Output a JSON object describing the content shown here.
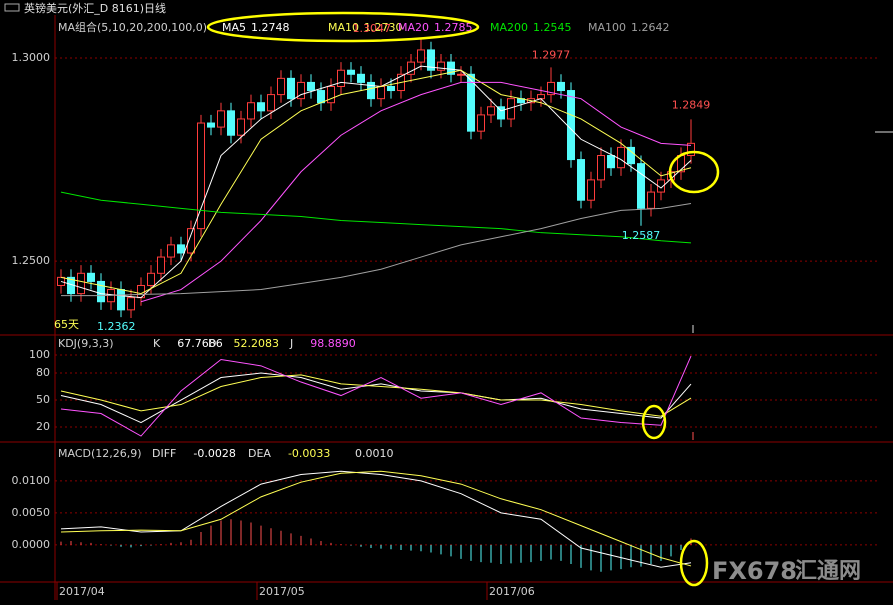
{
  "header": {
    "title": "英镑美元(外汇_D 8161)日线"
  },
  "watermark": {
    "brand": "FX678",
    "name": "汇通网"
  },
  "chart_data": [
    {
      "type": "candlestick",
      "title": "MA组合(5,10,20,200,100,0)",
      "period_label": "65天",
      "up_color": "#ff3c3c",
      "down_color": "#54fcfc",
      "grid": true,
      "ylim": [
        1.2323,
        1.3106
      ],
      "yticks": [
        {
          "value": 1.25,
          "label": "1.2500"
        },
        {
          "value": 1.3,
          "label": "1.3000"
        }
      ],
      "ohlc": [
        [
          1.244,
          1.248,
          1.242,
          1.246
        ],
        [
          1.246,
          1.248,
          1.24,
          1.242
        ],
        [
          1.242,
          1.249,
          1.24,
          1.247
        ],
        [
          1.247,
          1.249,
          1.243,
          1.245
        ],
        [
          1.245,
          1.247,
          1.238,
          1.24
        ],
        [
          1.24,
          1.245,
          1.238,
          1.243
        ],
        [
          1.243,
          1.245,
          1.2362,
          1.238
        ],
        [
          1.238,
          1.243,
          1.236,
          1.241
        ],
        [
          1.241,
          1.246,
          1.239,
          1.244
        ],
        [
          1.244,
          1.249,
          1.242,
          1.247
        ],
        [
          1.247,
          1.253,
          1.245,
          1.251
        ],
        [
          1.251,
          1.256,
          1.249,
          1.254
        ],
        [
          1.254,
          1.256,
          1.25,
          1.252
        ],
        [
          1.252,
          1.26,
          1.25,
          1.258
        ],
        [
          1.258,
          1.286,
          1.256,
          1.284
        ],
        [
          1.284,
          1.286,
          1.281,
          1.283
        ],
        [
          1.283,
          1.289,
          1.281,
          1.287
        ],
        [
          1.287,
          1.289,
          1.279,
          1.281
        ],
        [
          1.281,
          1.287,
          1.279,
          1.285
        ],
        [
          1.285,
          1.291,
          1.283,
          1.289
        ],
        [
          1.289,
          1.291,
          1.285,
          1.287
        ],
        [
          1.287,
          1.293,
          1.285,
          1.291
        ],
        [
          1.291,
          1.297,
          1.289,
          1.295
        ],
        [
          1.295,
          1.297,
          1.288,
          1.29
        ],
        [
          1.29,
          1.296,
          1.288,
          1.294
        ],
        [
          1.294,
          1.296,
          1.29,
          1.292
        ],
        [
          1.292,
          1.294,
          1.287,
          1.289
        ],
        [
          1.289,
          1.295,
          1.287,
          1.293
        ],
        [
          1.293,
          1.299,
          1.291,
          1.297
        ],
        [
          1.297,
          1.299,
          1.294,
          1.296
        ],
        [
          1.296,
          1.298,
          1.292,
          1.294
        ],
        [
          1.294,
          1.296,
          1.288,
          1.29
        ],
        [
          1.29,
          1.295,
          1.288,
          1.293
        ],
        [
          1.293,
          1.295,
          1.29,
          1.292
        ],
        [
          1.292,
          1.298,
          1.29,
          1.296
        ],
        [
          1.296,
          1.301,
          1.294,
          1.299
        ],
        [
          1.299,
          1.3047,
          1.297,
          1.302
        ],
        [
          1.302,
          1.304,
          1.295,
          1.297
        ],
        [
          1.297,
          1.301,
          1.295,
          1.299
        ],
        [
          1.299,
          1.301,
          1.294,
          1.296
        ],
        [
          1.296,
          1.298,
          1.294,
          1.296
        ],
        [
          1.296,
          1.298,
          1.28,
          1.282
        ],
        [
          1.282,
          1.288,
          1.28,
          1.286
        ],
        [
          1.286,
          1.29,
          1.284,
          1.288
        ],
        [
          1.288,
          1.29,
          1.283,
          1.285
        ],
        [
          1.285,
          1.292,
          1.283,
          1.29
        ],
        [
          1.29,
          1.292,
          1.287,
          1.289
        ],
        [
          1.289,
          1.292,
          1.287,
          1.29
        ],
        [
          1.29,
          1.293,
          1.288,
          1.291
        ],
        [
          1.291,
          1.2977,
          1.289,
          1.294
        ],
        [
          1.294,
          1.296,
          1.29,
          1.292
        ],
        [
          1.292,
          1.294,
          1.273,
          1.275
        ],
        [
          1.275,
          1.277,
          1.263,
          1.265
        ],
        [
          1.265,
          1.272,
          1.263,
          1.27
        ],
        [
          1.27,
          1.278,
          1.268,
          1.276
        ],
        [
          1.276,
          1.278,
          1.271,
          1.273
        ],
        [
          1.273,
          1.28,
          1.271,
          1.278
        ],
        [
          1.278,
          1.28,
          1.272,
          1.274
        ],
        [
          1.274,
          1.276,
          1.2587,
          1.263
        ],
        [
          1.263,
          1.269,
          1.261,
          1.267
        ],
        [
          1.267,
          1.272,
          1.265,
          1.27
        ],
        [
          1.27,
          1.274,
          1.268,
          1.272
        ],
        [
          1.272,
          1.278,
          1.27,
          1.276
        ],
        [
          1.276,
          1.2849,
          1.274,
          1.279
        ]
      ],
      "line_x": [
        0,
        4,
        8,
        12,
        16,
        20,
        24,
        28,
        32,
        36,
        40,
        44,
        48,
        52,
        56,
        60,
        63
      ],
      "series": [
        {
          "name": "MA5",
          "color": "#ffffff",
          "values": [
            1.245,
            1.242,
            1.241,
            1.25,
            1.276,
            1.285,
            1.291,
            1.294,
            1.293,
            1.298,
            1.297,
            1.287,
            1.29,
            1.28,
            1.275,
            1.268,
            1.2748
          ]
        },
        {
          "name": "MA10",
          "color": "#ffff54",
          "values": [
            1.246,
            1.244,
            1.242,
            1.247,
            1.264,
            1.28,
            1.287,
            1.291,
            1.293,
            1.295,
            1.297,
            1.291,
            1.289,
            1.285,
            1.279,
            1.271,
            1.273
          ],
          "value_labels": [
            null,
            null,
            null,
            null,
            null,
            null,
            null,
            null,
            null,
            null,
            null,
            null,
            null,
            null,
            null,
            null,
            "1.2730"
          ]
        },
        {
          "name": "MA20",
          "color": "#ff54ff",
          "values": [
            null,
            null,
            1.24,
            1.243,
            1.25,
            1.26,
            1.272,
            1.281,
            1.287,
            1.291,
            1.294,
            1.294,
            1.292,
            1.29,
            1.283,
            1.279,
            1.2785
          ]
        },
        {
          "name": "MA200",
          "color": "#00e600",
          "values": [
            1.267,
            1.265,
            1.264,
            1.263,
            1.262,
            1.2615,
            1.261,
            1.26,
            1.2595,
            1.259,
            1.2585,
            1.258,
            1.257,
            1.2565,
            1.256,
            1.255,
            1.2545
          ]
        },
        {
          "name": "MA100",
          "color": "#a0a0a0",
          "values": [
            1.2415,
            1.2415,
            1.2418,
            1.242,
            1.2425,
            1.243,
            1.2445,
            1.246,
            1.248,
            1.251,
            1.254,
            1.256,
            1.258,
            1.2605,
            1.2625,
            1.263,
            1.2642
          ]
        }
      ]
    },
    {
      "type": "line",
      "title": "KDJ(9,3,3)",
      "grid": true,
      "ylim": [
        5.6,
        116.7
      ],
      "yticks": [
        20,
        50,
        80,
        100
      ],
      "series": [
        {
          "name": "K",
          "color": "#ffffff",
          "values": [
            55,
            45,
            25,
            50,
            75,
            80,
            75,
            62,
            68,
            60,
            58,
            50,
            52,
            40,
            35,
            30,
            67.7686
          ]
        },
        {
          "name": "D",
          "color": "#ffff54",
          "values": [
            60,
            50,
            38,
            45,
            65,
            75,
            78,
            68,
            65,
            62,
            58,
            50,
            50,
            45,
            38,
            32,
            52.2083
          ]
        },
        {
          "name": "J",
          "color": "#ff54ff",
          "values": [
            40,
            35,
            10,
            60,
            95,
            88,
            70,
            55,
            75,
            52,
            58,
            45,
            58,
            30,
            25,
            22,
            98.889
          ],
          "value_labels": [
            null,
            null,
            null,
            null,
            null,
            null,
            null,
            null,
            null,
            null,
            null,
            null,
            null,
            null,
            null,
            null,
            "98.8890"
          ]
        }
      ]
    },
    {
      "type": "macd",
      "title": "MACD(12,26,9)",
      "grid": true,
      "ylim": [
        -0.0055,
        0.0153
      ],
      "yticks": [
        {
          "value": 0,
          "label": "0.0000"
        },
        {
          "value": 0.005,
          "label": "0.0050"
        },
        {
          "value": 0.01,
          "label": "0.0100"
        }
      ],
      "xticks": [
        {
          "value": 0,
          "label": "2017/04"
        },
        {
          "value": 20,
          "label": "2017/05"
        },
        {
          "value": 43,
          "label": "2017/06"
        }
      ],
      "series": [
        {
          "name": "DIFF",
          "color": "#ffffff",
          "values": [
            0.0025,
            0.0028,
            0.002,
            0.0022,
            0.006,
            0.0095,
            0.011,
            0.0115,
            0.011,
            0.01,
            0.008,
            0.005,
            0.004,
            -0.0005,
            -0.002,
            -0.0035,
            -0.0028
          ]
        },
        {
          "name": "DEA",
          "color": "#ffff54",
          "values": [
            0.002,
            0.0022,
            0.0023,
            0.0022,
            0.004,
            0.0075,
            0.0098,
            0.0112,
            0.0115,
            0.0108,
            0.0095,
            0.0072,
            0.0055,
            0.003,
            0.0005,
            -0.002,
            -0.0033
          ]
        }
      ],
      "histogram": {
        "up_color": "#ff5050",
        "down_color": "#54fcfc",
        "values": [
          0.0005,
          0.0006,
          0.0004,
          0.0003,
          0.0001,
          -0.0001,
          -0.0003,
          -0.0004,
          -0.0002,
          -0.0001,
          0.0001,
          0.0003,
          0.0004,
          0.0008,
          0.002,
          0.003,
          0.0038,
          0.004,
          0.0038,
          0.0035,
          0.003,
          0.0026,
          0.0022,
          0.0018,
          0.0014,
          0.001,
          0.0006,
          0.0003,
          0.0001,
          -0.0001,
          -0.0003,
          -0.0005,
          -0.0006,
          -0.0007,
          -0.0008,
          -0.0009,
          -0.001,
          -0.0012,
          -0.0015,
          -0.0018,
          -0.0022,
          -0.0025,
          -0.0027,
          -0.0028,
          -0.003,
          -0.0029,
          -0.0028,
          -0.0027,
          -0.0025,
          -0.0023,
          -0.0025,
          -0.003,
          -0.0036,
          -0.004,
          -0.0042,
          -0.004,
          -0.0038,
          -0.0035,
          -0.0034,
          -0.003,
          -0.0025,
          -0.0018,
          -0.0008,
          0.001
        ],
        "value_labels": [
          null,
          null,
          null,
          null,
          null,
          null,
          null,
          null,
          null,
          null,
          null,
          null,
          null,
          null,
          null,
          null,
          null,
          null,
          null,
          null,
          null,
          null,
          null,
          null,
          null,
          null,
          null,
          null,
          null,
          null,
          null,
          null,
          null,
          null,
          null,
          null,
          null,
          null,
          null,
          null,
          null,
          null,
          null,
          null,
          null,
          null,
          null,
          null,
          null,
          null,
          null,
          null,
          null,
          null,
          null,
          null,
          null,
          null,
          null,
          null,
          null,
          null,
          null,
          "0.0010"
        ]
      }
    }
  ]
}
